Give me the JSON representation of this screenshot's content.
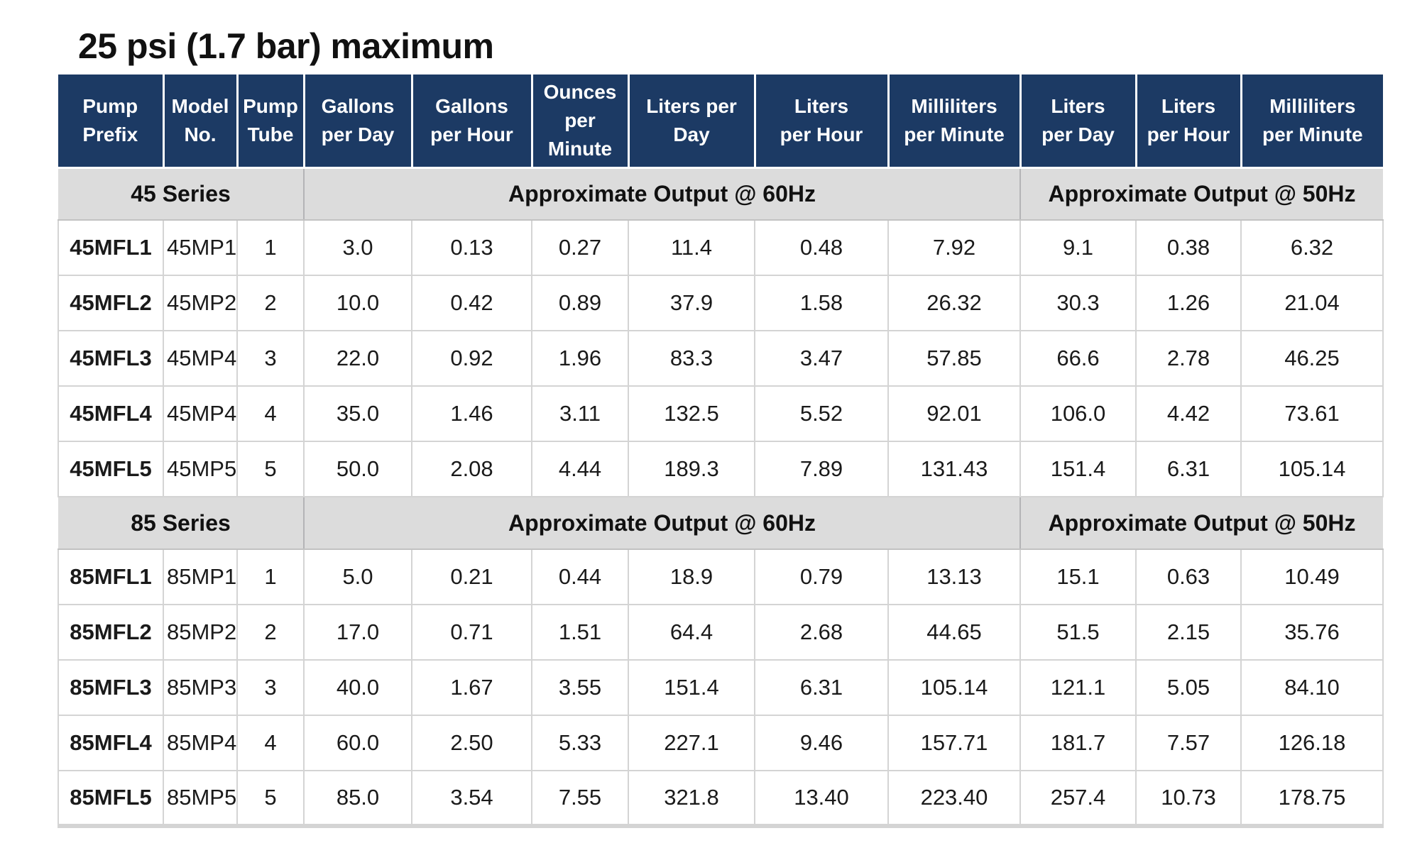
{
  "page": {
    "title": "25 psi (1.7 bar) maximum"
  },
  "colors": {
    "header_bg": "#1c3a64",
    "header_text": "#ffffff",
    "section_bg": "#dcdcdc",
    "section_divider": "#b4b4b6",
    "grid_line": "#d4d4d4",
    "text": "#1a1a1a"
  },
  "table": {
    "columns": [
      {
        "id": "pump-prefix",
        "lines": [
          "Pump",
          "Prefix"
        ]
      },
      {
        "id": "model-no",
        "lines": [
          "Model",
          "No."
        ]
      },
      {
        "id": "pump-tube",
        "lines": [
          "Pump",
          "Tube"
        ]
      },
      {
        "id": "gallons-per-day-60hz",
        "lines": [
          "Gallons",
          "per Day"
        ]
      },
      {
        "id": "gallons-per-hour-60hz",
        "lines": [
          "Gallons",
          "per Hour"
        ]
      },
      {
        "id": "ounces-per-minute-60hz",
        "lines": [
          "Ounces",
          "per",
          "Minute"
        ]
      },
      {
        "id": "liters-per-day-60hz",
        "lines": [
          "Liters per Day"
        ]
      },
      {
        "id": "liters-per-hour-60hz",
        "lines": [
          "Liters",
          "per Hour"
        ]
      },
      {
        "id": "milliliters-per-minute-60hz",
        "lines": [
          "Milliliters",
          "per Minute"
        ]
      },
      {
        "id": "liters-per-day-50hz",
        "lines": [
          "Liters",
          "per Day"
        ]
      },
      {
        "id": "liters-per-hour-50hz",
        "lines": [
          "Liters",
          "per Hour"
        ]
      },
      {
        "id": "milliliters-per-minute-50hz",
        "lines": [
          "Milliliters",
          "per Minute"
        ]
      }
    ],
    "sections": [
      {
        "series_label": "45 Series",
        "output_60hz_label": "Approximate Output @ 60Hz",
        "output_50hz_label": "Approximate Output @ 50Hz",
        "rows": [
          {
            "cells": [
              "45MFL1",
              "45MP1",
              "1",
              "3.0",
              "0.13",
              "0.27",
              "11.4",
              "0.48",
              "7.92",
              "9.1",
              "0.38",
              "6.32"
            ]
          },
          {
            "cells": [
              "45MFL2",
              "45MP2",
              "2",
              "10.0",
              "0.42",
              "0.89",
              "37.9",
              "1.58",
              "26.32",
              "30.3",
              "1.26",
              "21.04"
            ]
          },
          {
            "cells": [
              "45MFL3",
              "45MP4",
              "3",
              "22.0",
              "0.92",
              "1.96",
              "83.3",
              "3.47",
              "57.85",
              "66.6",
              "2.78",
              "46.25"
            ]
          },
          {
            "cells": [
              "45MFL4",
              "45MP4",
              "4",
              "35.0",
              "1.46",
              "3.11",
              "132.5",
              "5.52",
              "92.01",
              "106.0",
              "4.42",
              "73.61"
            ]
          },
          {
            "cells": [
              "45MFL5",
              "45MP5",
              "5",
              "50.0",
              "2.08",
              "4.44",
              "189.3",
              "7.89",
              "131.43",
              "151.4",
              "6.31",
              "105.14"
            ]
          }
        ]
      },
      {
        "series_label": "85 Series",
        "output_60hz_label": "Approximate Output @ 60Hz",
        "output_50hz_label": "Approximate Output @ 50Hz",
        "rows": [
          {
            "cells": [
              "85MFL1",
              "85MP1",
              "1",
              "5.0",
              "0.21",
              "0.44",
              "18.9",
              "0.79",
              "13.13",
              "15.1",
              "0.63",
              "10.49"
            ]
          },
          {
            "cells": [
              "85MFL2",
              "85MP2",
              "2",
              "17.0",
              "0.71",
              "1.51",
              "64.4",
              "2.68",
              "44.65",
              "51.5",
              "2.15",
              "35.76"
            ]
          },
          {
            "cells": [
              "85MFL3",
              "85MP3",
              "3",
              "40.0",
              "1.67",
              "3.55",
              "151.4",
              "6.31",
              "105.14",
              "121.1",
              "5.05",
              "84.10"
            ]
          },
          {
            "cells": [
              "85MFL4",
              "85MP4",
              "4",
              "60.0",
              "2.50",
              "5.33",
              "227.1",
              "9.46",
              "157.71",
              "181.7",
              "7.57",
              "126.18"
            ]
          },
          {
            "cells": [
              "85MFL5",
              "85MP5",
              "5",
              "85.0",
              "3.54",
              "7.55",
              "321.8",
              "13.40",
              "223.40",
              "257.4",
              "10.73",
              "178.75"
            ]
          }
        ]
      }
    ]
  }
}
